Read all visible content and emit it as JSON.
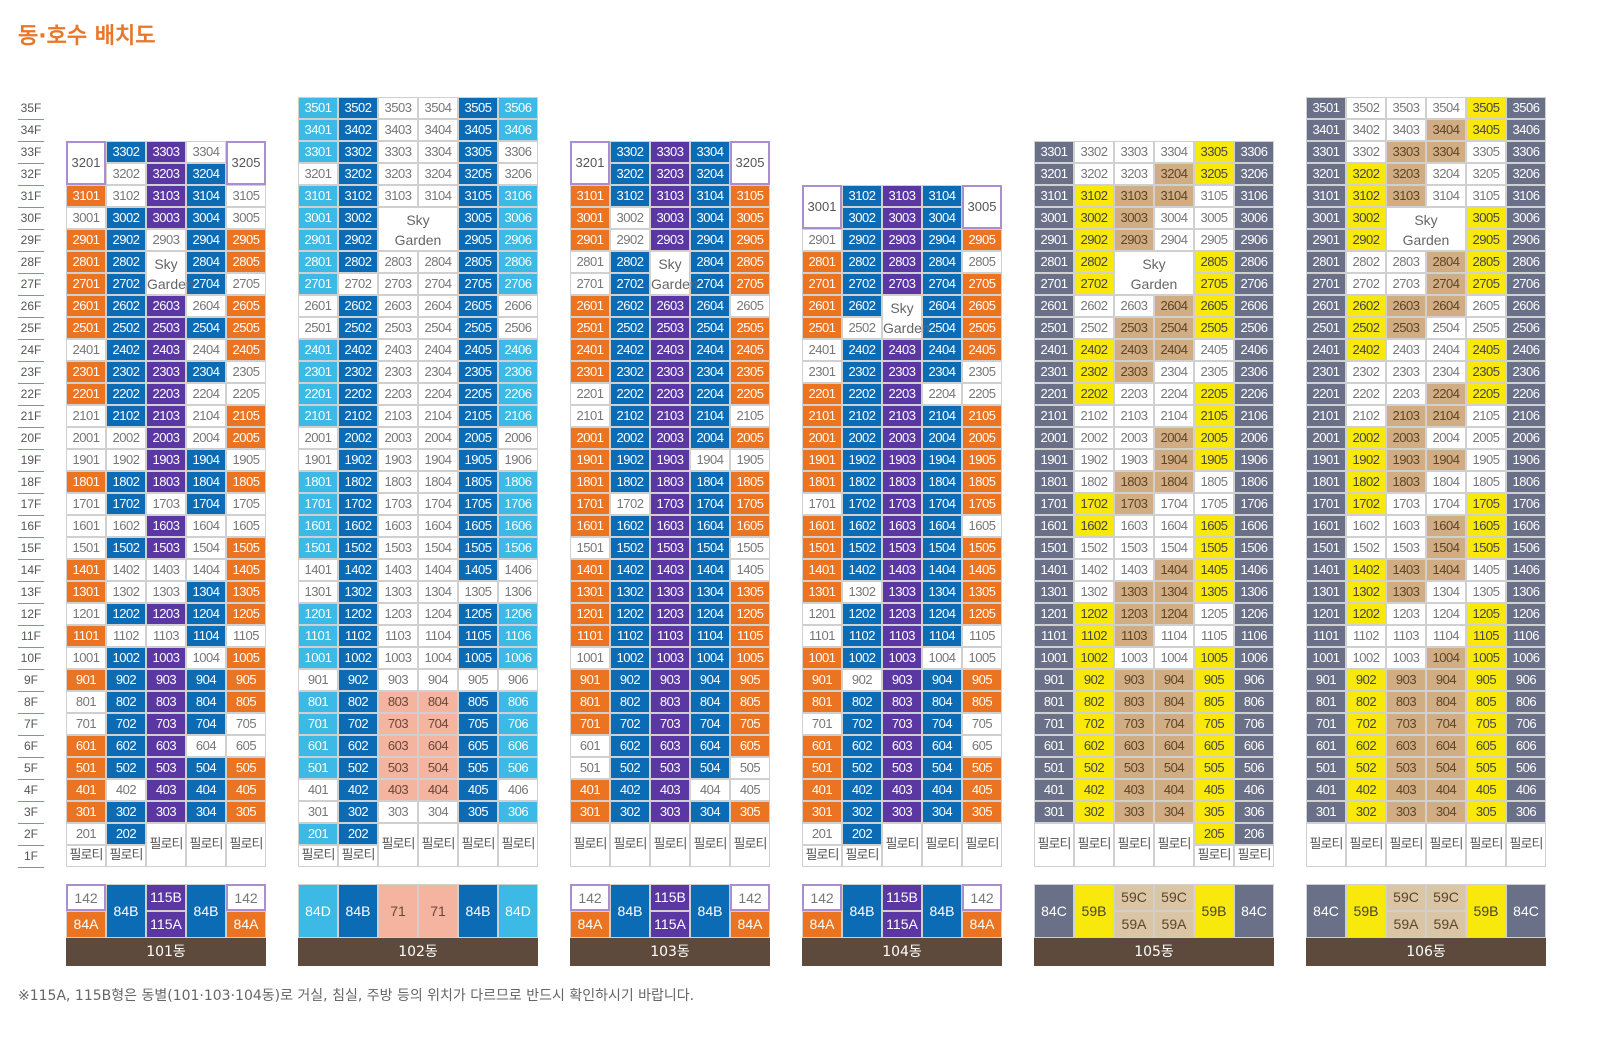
{
  "title": "동·호수 배치도",
  "note": "※115A, 115B형은 동별(101·103·104동)로 거실, 침실, 주방 등의 위치가 다르므로 반드시 확인하시기 바랍니다.",
  "floor_labels": [
    "35F",
    "34F",
    "33F",
    "32F",
    "31F",
    "30F",
    "29F",
    "28F",
    "27F",
    "26F",
    "25F",
    "24F",
    "23F",
    "22F",
    "21F",
    "20F",
    "19F",
    "18F",
    "17F",
    "16F",
    "15F",
    "14F",
    "13F",
    "12F",
    "11F",
    "10F",
    "9F",
    "8F",
    "7F",
    "6F",
    "5F",
    "4F",
    "3F",
    "2F",
    "1F"
  ],
  "pilotis_label": "필로티",
  "sky_label_1": "Sky",
  "sky_label_2": "Garden",
  "legend_colors": {
    "O": "#ea7422",
    "B": "#0b6cb5",
    "P": "#5a37a2",
    "W": "#ffffff",
    "C": "#3cb9e4",
    "S": "#f4b4a0",
    "G": "#6a7087",
    "Y": "#f9e80c",
    "T": "#d1ad84",
    "D": "#dac6a6"
  },
  "buildings": [
    {
      "name": "101동",
      "top_floor": 33,
      "cols": 5,
      "pattern": [
        "O",
        "B",
        "P",
        "B",
        "O"
      ],
      "exceptions": {
        "3301": "B",
        "3302": "B",
        "3303": "P",
        "3304": "W",
        "3202": "W",
        "3203": "P",
        "3204": "B",
        "3101": "O",
        "3102": "W",
        "3103": "P",
        "3104": "B",
        "3105": "W",
        "3001": "W",
        "3002": "B",
        "3003": "P",
        "3004": "B",
        "3005": "W",
        "2901": "O",
        "2902": "B",
        "2903": "W",
        "2904": "B",
        "2905": "O",
        "2801": "O",
        "2802": "B",
        "2804": "B",
        "2805": "O",
        "2701": "O",
        "2702": "B",
        "2704": "B",
        "2705": "W",
        "2604": "W",
        "2404": "W",
        "2204": "W",
        "2205": "W",
        "2101": "W",
        "2104": "W",
        "2001": "W",
        "2002": "W",
        "2004": "W",
        "1901": "W",
        "1905": "W",
        "1703": "W",
        "1601": "W",
        "1602": "W",
        "1604": "W",
        "1501": "W",
        "1504": "W",
        "1402": "W",
        "1403": "W",
        "1404": "W",
        "1302": "W",
        "1303": "W",
        "1201": "W",
        "1102": "W",
        "1103": "W",
        "1105": "W",
        "1001": "W",
        "1004": "W"
      },
      "sky": {
        "col": 2,
        "floors": [
          28,
          27
        ]
      },
      "dup_tops": [
        {
          "col": 0,
          "label": "3201",
          "floors": [
            33,
            32
          ]
        },
        {
          "col": 4,
          "label": "3205",
          "floors": [
            33,
            32
          ]
        }
      ],
      "ground": [
        "필로티",
        "필로티",
        "필로티",
        "필로티",
        "필로티"
      ],
      "has_202": true,
      "types": [
        [
          "142",
          "84A"
        ],
        [
          "84B"
        ],
        [
          "115B",
          "115A"
        ],
        [
          "84B"
        ],
        [
          "142",
          "84A"
        ]
      ],
      "type_colors": [
        [
          "W",
          "O"
        ],
        [
          "B"
        ],
        [
          "P",
          "P"
        ],
        [
          "B"
        ],
        [
          "W",
          "O"
        ]
      ]
    },
    {
      "name": "102동",
      "top_floor": 35,
      "cols": 6,
      "pattern": [
        "C",
        "B",
        "W",
        "W",
        "B",
        "C"
      ],
      "exceptions": {},
      "sky": {
        "cols": [
          2,
          3
        ],
        "floors": [
          30,
          29
        ]
      },
      "ground": [
        "필로티",
        "필로티",
        "필로티",
        "필로티",
        "필로티",
        "필로티"
      ],
      "has_202": true,
      "types": [
        [
          "84D"
        ],
        [
          "84B"
        ],
        [
          "71"
        ],
        [
          "71"
        ],
        [
          "84B"
        ],
        [
          "84D"
        ]
      ],
      "type_colors": [
        [
          "C"
        ],
        [
          "B"
        ],
        [
          "S"
        ],
        [
          "S"
        ],
        [
          "B"
        ],
        [
          "C"
        ]
      ]
    },
    {
      "name": "103동",
      "top_floor": 33,
      "cols": 5,
      "pattern": [
        "O",
        "B",
        "P",
        "B",
        "O"
      ],
      "exceptions": {},
      "sky": {
        "col": 2,
        "floors": [
          28,
          27
        ]
      },
      "dup_tops": [
        {
          "col": 0,
          "label": "3201",
          "floors": [
            33,
            32
          ]
        },
        {
          "col": 4,
          "label": "3205",
          "floors": [
            33,
            32
          ]
        }
      ],
      "ground": [
        "필로티",
        "필로티",
        "필로티",
        "필로티",
        "필로티"
      ],
      "has_202": false,
      "types": [
        [
          "142",
          "84A"
        ],
        [
          "84B"
        ],
        [
          "115B",
          "115A"
        ],
        [
          "84B"
        ],
        [
          "142",
          "84A"
        ]
      ],
      "type_colors": [
        [
          "W",
          "O"
        ],
        [
          "B"
        ],
        [
          "P",
          "P"
        ],
        [
          "B"
        ],
        [
          "W",
          "O"
        ]
      ]
    },
    {
      "name": "104동",
      "top_floor": 31,
      "cols": 5,
      "pattern": [
        "O",
        "B",
        "P",
        "B",
        "O"
      ],
      "exceptions": {},
      "sky": {
        "col": 2,
        "floors": [
          26,
          25
        ]
      },
      "dup_tops": [
        {
          "col": 0,
          "label": "3001",
          "floors": [
            31,
            30
          ]
        },
        {
          "col": 4,
          "label": "3005",
          "floors": [
            31,
            30
          ]
        }
      ],
      "ground": [
        "필로티",
        "필로티",
        "필로티",
        "필로티",
        "필로티"
      ],
      "has_202": true,
      "types": [
        [
          "142",
          "84A"
        ],
        [
          "84B"
        ],
        [
          "115B",
          "115A"
        ],
        [
          "84B"
        ],
        [
          "142",
          "84A"
        ]
      ],
      "type_colors": [
        [
          "W",
          "O"
        ],
        [
          "B"
        ],
        [
          "P",
          "P"
        ],
        [
          "B"
        ],
        [
          "W",
          "O"
        ]
      ]
    },
    {
      "name": "105동",
      "top_floor": 33,
      "cols": 6,
      "pattern": [
        "G",
        "Y",
        "T",
        "T",
        "Y",
        "G"
      ],
      "exceptions": {},
      "sky": {
        "cols": [
          2,
          3
        ],
        "floors": [
          28,
          27
        ]
      },
      "ground": [
        "필로티",
        "필로티",
        "필로티",
        "필로티",
        "205",
        "206"
      ],
      "has_202": false,
      "types": [
        [
          "84C"
        ],
        [
          "59B"
        ],
        [
          "59C",
          "59A"
        ],
        [
          "59C",
          "59A"
        ],
        [
          "59B"
        ],
        [
          "84C"
        ]
      ],
      "type_colors": [
        [
          "G"
        ],
        [
          "Y"
        ],
        [
          "D",
          "D"
        ],
        [
          "D",
          "D"
        ],
        [
          "Y"
        ],
        [
          "G"
        ]
      ]
    },
    {
      "name": "106동",
      "top_floor": 35,
      "cols": 6,
      "pattern": [
        "G",
        "Y",
        "T",
        "T",
        "Y",
        "G"
      ],
      "exceptions": {},
      "sky": {
        "cols": [
          2,
          3
        ],
        "floors": [
          30,
          29
        ]
      },
      "ground": [
        "필로티",
        "필로티",
        "필로티",
        "필로티",
        "필로티",
        "필로티"
      ],
      "has_202": false,
      "types": [
        [
          "84C"
        ],
        [
          "59B"
        ],
        [
          "59C",
          "59A"
        ],
        [
          "59C",
          "59A"
        ],
        [
          "59B"
        ],
        [
          "84C"
        ]
      ],
      "type_colors": [
        [
          "G"
        ],
        [
          "Y"
        ],
        [
          "D",
          "D"
        ],
        [
          "D",
          "D"
        ],
        [
          "Y"
        ],
        [
          "G"
        ]
      ]
    }
  ]
}
